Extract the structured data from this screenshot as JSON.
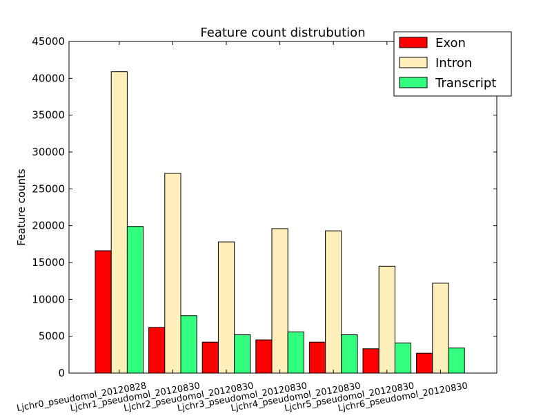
{
  "chart_data": {
    "type": "bar",
    "title": "Feature count distrubution",
    "xlabel": "",
    "ylabel": "Feature counts",
    "ylim": [
      0,
      45000
    ],
    "yticks": [
      0,
      5000,
      10000,
      15000,
      20000,
      25000,
      30000,
      35000,
      40000,
      45000
    ],
    "categories": [
      "Ljchr0_pseudomol_20120828",
      "Ljchr1_pseudomol_20120830",
      "Ljchr2_pseudomol_20120830",
      "Ljchr3_pseudomol_20120830",
      "Ljchr4_pseudomol_20120830",
      "Ljchr5_pseudomol_20120830",
      "Ljchr6_pseudomol_20120830"
    ],
    "series": [
      {
        "name": "Exon",
        "color": "#ff0000",
        "values": [
          16600,
          6200,
          4200,
          4500,
          4200,
          3300,
          2700
        ]
      },
      {
        "name": "Intron",
        "color": "#ffefbb",
        "values": [
          40900,
          27100,
          17800,
          19600,
          19300,
          14500,
          12200
        ]
      },
      {
        "name": "Transcript",
        "color": "#33ff7f",
        "values": [
          19900,
          7800,
          5200,
          5600,
          5200,
          4100,
          3400
        ]
      }
    ],
    "grid": false,
    "legend_position": "top-right"
  }
}
